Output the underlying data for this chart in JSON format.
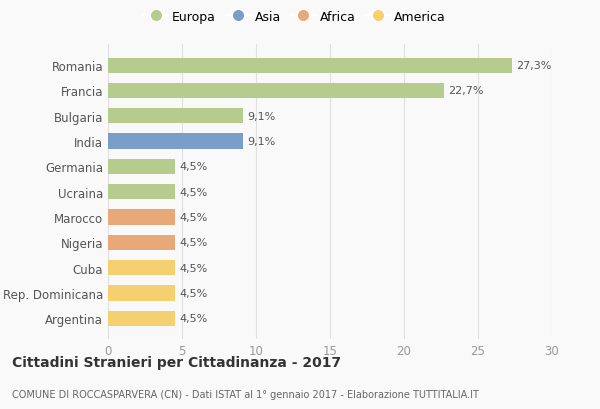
{
  "categories": [
    "Romania",
    "Francia",
    "Bulgaria",
    "India",
    "Germania",
    "Ucraina",
    "Marocco",
    "Nigeria",
    "Cuba",
    "Rep. Dominicana",
    "Argentina"
  ],
  "values": [
    27.3,
    22.7,
    9.1,
    9.1,
    4.5,
    4.5,
    4.5,
    4.5,
    4.5,
    4.5,
    4.5
  ],
  "bar_colors": [
    "#b5cc8e",
    "#b5cc8e",
    "#b5cc8e",
    "#7b9ec9",
    "#b5cc8e",
    "#b5cc8e",
    "#e8a878",
    "#e8a878",
    "#f5d070",
    "#f5d070",
    "#f5d070"
  ],
  "labels": [
    "27,3%",
    "22,7%",
    "9,1%",
    "9,1%",
    "4,5%",
    "4,5%",
    "4,5%",
    "4,5%",
    "4,5%",
    "4,5%",
    "4,5%"
  ],
  "legend_labels": [
    "Europa",
    "Asia",
    "Africa",
    "America"
  ],
  "legend_colors": [
    "#b5cc8e",
    "#7b9ec9",
    "#e8a878",
    "#f5d070"
  ],
  "xlim": [
    0,
    30
  ],
  "xticks": [
    0,
    5,
    10,
    15,
    20,
    25,
    30
  ],
  "title": "Cittadini Stranieri per Cittadinanza - 2017",
  "subtitle": "COMUNE DI ROCCASPARVERA (CN) - Dati ISTAT al 1° gennaio 2017 - Elaborazione TUTTITALIA.IT",
  "background_color": "#f9f9f9",
  "grid_color": "#e0e0e0",
  "bar_height": 0.6,
  "label_fontsize": 8,
  "ytick_fontsize": 8.5,
  "xtick_fontsize": 8.5
}
